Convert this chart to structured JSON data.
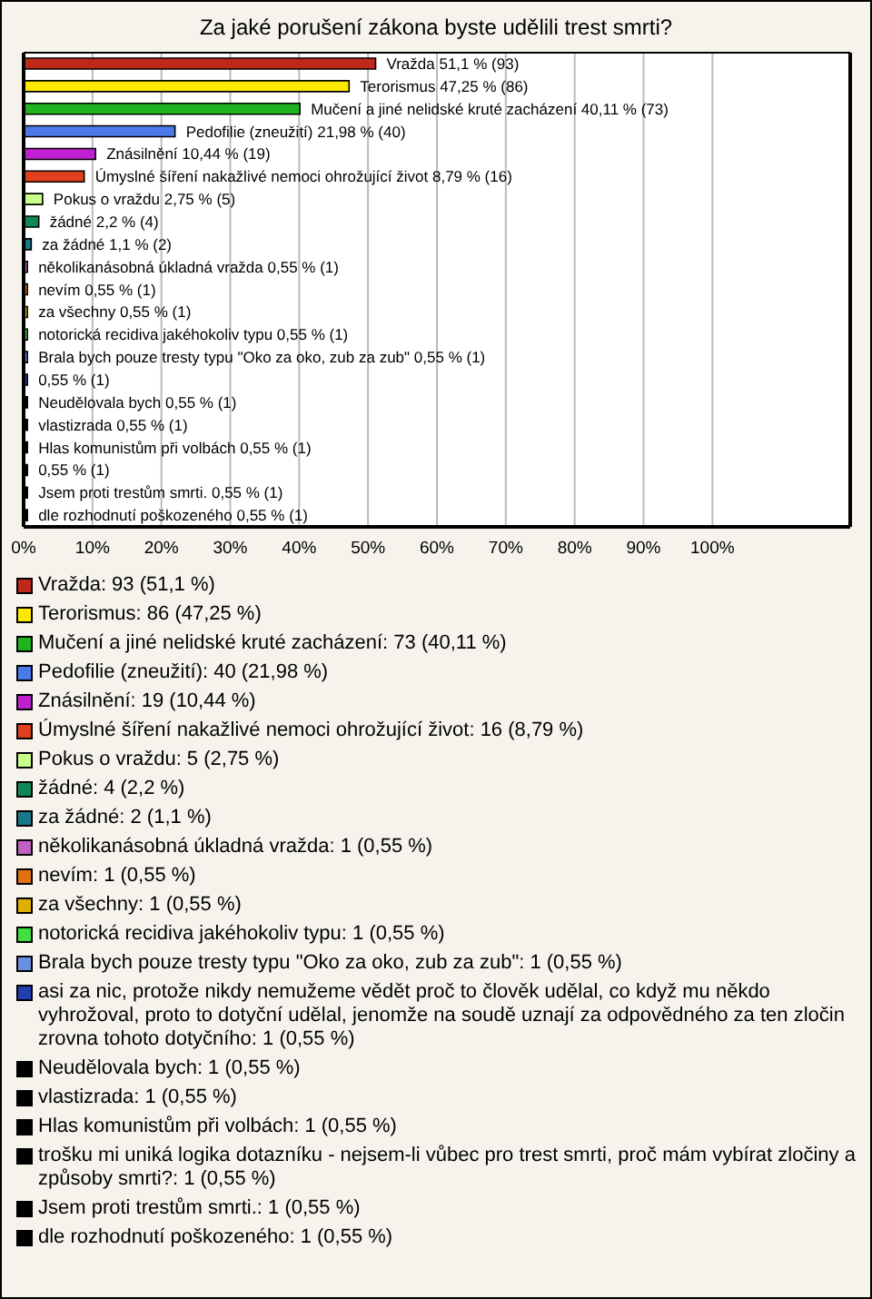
{
  "chart_data": {
    "type": "bar",
    "orientation": "horizontal",
    "title": "Za jaké porušení zákona byste udělili trest smrti?",
    "categories": [
      null,
      null,
      null,
      null,
      null,
      null,
      null,
      null,
      null,
      null,
      null,
      null,
      null,
      null,
      null,
      null,
      null,
      null,
      null,
      null,
      null
    ],
    "values": [
      51.1,
      47.25,
      40.11,
      21.98,
      10.44,
      8.79,
      2.75,
      2.2,
      1.1,
      0.55,
      0.55,
      0.55,
      0.55,
      0.55,
      0.55,
      0.55,
      0.55,
      0.55,
      0.55,
      0.55,
      0.55
    ],
    "value_labels": [
      "Vražda 51,1 % (93)",
      "Terorismus 47,25 % (86)",
      "Mučení a jiné nelidské kruté zacházení 40,11 % (73)",
      "Pedofilie (zneužití) 21,98 % (40)",
      "Znásilnění 10,44 % (19)",
      "Úmyslné šíření nakažlivé nemoci ohrožující život 8,79 % (16)",
      "Pokus o vraždu 2,75 % (5)",
      "žádné 2,2 % (4)",
      "za žádné 1,1 % (2)",
      "několikanásobná úkladná vražda 0,55 % (1)",
      "nevím 0,55 % (1)",
      "za všechny 0,55 % (1)",
      "notorická recidiva jakéhokoliv typu 0,55 % (1)",
      "Brala bych pouze tresty typu \"Oko za oko, zub za zub\" 0,55 % (1)",
      "0,55 % (1)",
      "Neudělovala bych 0,55 % (1)",
      "vlastizrada 0,55 % (1)",
      "Hlas komunistům při volbách 0,55 % (1)",
      "0,55 % (1)",
      "Jsem proti trestům smrti. 0,55 % (1)",
      "dle rozhodnutí poškozeného 0,55 % (1)"
    ],
    "colors": [
      "#c0281c",
      "#ffe800",
      "#1fb41f",
      "#4a7ae8",
      "#c020d0",
      "#e0401c",
      "#c8ff88",
      "#108858",
      "#187888",
      "#c060c0",
      "#e07010",
      "#e0b000",
      "#40e040",
      "#6890e0",
      "#2040b0",
      "#000000",
      "#000000",
      "#000000",
      "#000000",
      "#000000",
      "#000000"
    ],
    "annotations": [
      "Vražda: 93 (51,1 %)",
      "Terorismus: 86 (47,25 %)",
      "Mučení a jiné nelidské kruté zacházení: 73 (40,11 %)",
      "Pedofilie (zneužití): 40 (21,98 %)",
      "Znásilnění: 19 (10,44 %)",
      "Úmyslné šíření nakažlivé nemoci ohrožující život: 16 (8,79 %)",
      "Pokus o vraždu: 5 (2,75 %)",
      "žádné: 4 (2,2 %)",
      "za žádné: 2 (1,1 %)",
      "několikanásobná úkladná vražda: 1 (0,55 %)",
      "nevím: 1 (0,55 %)",
      "za všechny: 1 (0,55 %)",
      "notorická recidiva jakéhokoliv typu: 1 (0,55 %)",
      "Brala bych pouze tresty typu \"Oko za oko, zub za zub\": 1 (0,55 %)",
      "asi za nic, protože nikdy nemužeme vědět proč to člověk udělal, co když mu někdo vyhrožoval, proto to dotyční udělal, jenomže na soudě uznají za odpovědného za ten zločin zrovna tohoto dotyčního: 1 (0,55 %)",
      "Neudělovala bych: 1 (0,55 %)",
      "vlastizrada: 1 (0,55 %)",
      "Hlas komunistům při volbách: 1 (0,55 %)",
      "trošku mi uniká logika dotazníku - nejsem-li vůbec pro trest smrti, proč mám vybírat zločiny a způsoby smrti?: 1 (0,55 %)",
      "Jsem proti trestům smrti.: 1 (0,55 %)",
      "dle rozhodnutí poškozeného: 1 (0,55 %)"
    ],
    "xlim": [
      0,
      120
    ],
    "xticks": [
      {
        "value": 0,
        "label": "0%"
      },
      {
        "value": 10,
        "label": "10%"
      },
      {
        "value": 20,
        "label": "20%"
      },
      {
        "value": 30,
        "label": "30%"
      },
      {
        "value": 40,
        "label": "40%"
      },
      {
        "value": 50,
        "label": "50%"
      },
      {
        "value": 60,
        "label": "60%"
      },
      {
        "value": 70,
        "label": "70%"
      },
      {
        "value": 80,
        "label": "80%"
      },
      {
        "value": 90,
        "label": "90%"
      },
      {
        "value": 100,
        "label": "100%"
      }
    ],
    "grid": "x",
    "tick_labels": "x"
  }
}
